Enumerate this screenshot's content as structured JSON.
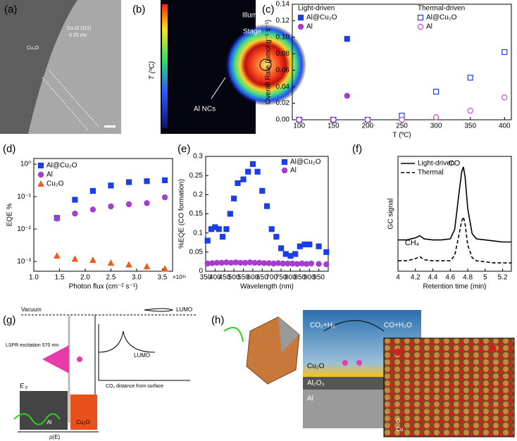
{
  "panel_labels": [
    "(a)",
    "(b)",
    "(c)",
    "(d)",
    "(e)",
    "(f)",
    "(g)",
    "(h)"
  ],
  "panel_a": {
    "texts": [
      "Cu₂O (111)",
      "0.25 nm",
      "Cu₂O"
    ]
  },
  "panel_b": {
    "texts": [
      "T (ºC)",
      "Illumination spot",
      "Stage",
      "Al NCs"
    ]
  },
  "panel_g": {
    "texts": [
      "Vacuum",
      "LUMO",
      "LUMO",
      "LSPR excitation 570 nm",
      "E",
      "F",
      "Al",
      "Cu₂O",
      "ρ(E)",
      "CO₂ distance from surface"
    ]
  },
  "panel_h": {
    "texts": [
      "CO₂+H₂",
      "CO+H₂O",
      "Cu₂O",
      "Al₂O₃",
      "Al",
      "O",
      "Cu"
    ]
  },
  "chart_data": [
    {
      "type": "scatter",
      "xlabel": "T (ºC)",
      "ylabel": "Overall Rate (μmol g⁻¹ s⁻¹)",
      "xlim": [
        90,
        410
      ],
      "ylim": [
        0,
        0.14
      ],
      "xticks": [
        100,
        150,
        200,
        250,
        300,
        350,
        400
      ],
      "yticks": [
        {
          "value": 0,
          "label": "0.00"
        },
        {
          "value": 0.02,
          "label": "0.02"
        },
        {
          "value": 0.04,
          "label": "0.04"
        },
        {
          "value": 0.06,
          "label": "0.06"
        },
        {
          "value": 0.08,
          "label": "0.08"
        },
        {
          "value": 0.1,
          "label": "0.10"
        },
        {
          "value": 0.12,
          "label": "0.12"
        },
        {
          "value": 0.14,
          "label": "0.14"
        }
      ],
      "legend_titles": [
        "Light-driven",
        "Thermal-driven"
      ],
      "series": [
        {
          "name": "Al@Cu₂O",
          "color": "#1a3ee8",
          "marker": "square",
          "filled": true,
          "x": [
            100,
            150,
            170
          ],
          "values": [
            0,
            0,
            0.098
          ]
        },
        {
          "name": "Al",
          "color": "#a63cd0",
          "marker": "circle",
          "filled": true,
          "x": [
            100,
            150,
            170
          ],
          "values": [
            0,
            0,
            0.029
          ]
        },
        {
          "name": "Al@Cu₂O",
          "color": "#1a3ee8",
          "marker": "square",
          "filled": false,
          "x": [
            100,
            150,
            200,
            250,
            300,
            350,
            400
          ],
          "values": [
            0,
            0,
            0,
            0.005,
            0.034,
            0.051,
            0.082
          ]
        },
        {
          "name": "Al",
          "color": "#c24fd6",
          "marker": "circle",
          "filled": false,
          "x": [
            100,
            150,
            200,
            250,
            300,
            350,
            400
          ],
          "values": [
            0,
            0,
            0,
            0,
            0.003,
            0.011,
            0.027
          ]
        }
      ]
    },
    {
      "type": "scatter",
      "xlabel": "Photon flux (cm⁻² s⁻¹)",
      "x_multiplier": "×10²⁵",
      "ylabel": "EQE %",
      "log_y": true,
      "xlim": [
        1.0,
        3.7
      ],
      "ylim": [
        0.0005,
        1.5
      ],
      "xticks": [
        {
          "value": 1,
          "label": "1.0"
        },
        1.5,
        {
          "value": 2,
          "label": "2.0"
        },
        2.5,
        {
          "value": 3,
          "label": "3.0"
        },
        3.5
      ],
      "yticks": [
        {
          "value": 0.001,
          "label": "10⁻³"
        },
        {
          "value": 0.01,
          "label": "10⁻²"
        },
        {
          "value": 0.1,
          "label": "10⁻¹"
        },
        {
          "value": 1,
          "label": "10⁰"
        }
      ],
      "series": [
        {
          "name": "Al@Cu₂O",
          "color": "#1a3ee8",
          "marker": "square",
          "filled": true,
          "x": [
            1.45,
            1.8,
            2.15,
            2.5,
            2.85,
            3.2,
            3.55
          ],
          "values": [
            0.022,
            0.08,
            0.15,
            0.22,
            0.28,
            0.3,
            0.32
          ]
        },
        {
          "name": "Al",
          "color": "#a63cd0",
          "marker": "circle",
          "filled": true,
          "x": [
            1.45,
            1.8,
            2.15,
            2.5,
            2.85,
            3.2,
            3.55
          ],
          "values": [
            0.021,
            0.03,
            0.04,
            0.05,
            0.058,
            0.063,
            0.095
          ]
        },
        {
          "name": "Cu₂O",
          "color": "#f05a1e",
          "marker": "triangle",
          "filled": true,
          "x": [
            1.45,
            1.8,
            2.15,
            2.5,
            2.85,
            3.2,
            3.55
          ],
          "values": [
            0.0015,
            0.0012,
            0.0011,
            0.0009,
            0.0008,
            0.0007,
            0.0006
          ]
        }
      ]
    },
    {
      "type": "scatter",
      "xlabel": "Wavelength (nm)",
      "ylabel": "%EQE (CO formation)",
      "xlim": [
        350,
        1000
      ],
      "ylim": [
        0,
        0.3
      ],
      "xticks": [
        350,
        400,
        450,
        500,
        550,
        600,
        650,
        700,
        750,
        800,
        850,
        900,
        950
      ],
      "yticks": [
        0,
        0.05,
        0.1,
        0.15,
        0.2,
        0.25,
        0.3
      ],
      "series": [
        {
          "name": "Al@Cu₂O",
          "color": "#1a3ee8",
          "marker": "square",
          "filled": true,
          "x": [
            360,
            380,
            400,
            420,
            440,
            460,
            480,
            500,
            520,
            550,
            575,
            600,
            625,
            650,
            675,
            700,
            725,
            750,
            775,
            800,
            825,
            850,
            875,
            900,
            950,
            990
          ],
          "values": [
            0.08,
            0.11,
            0.115,
            0.11,
            0.09,
            0.11,
            0.15,
            0.19,
            0.23,
            0.24,
            0.26,
            0.28,
            0.26,
            0.21,
            0.17,
            0.11,
            0.09,
            0.06,
            0.045,
            0.04,
            0.045,
            0.065,
            0.07,
            0.07,
            0.065,
            0.05
          ]
        },
        {
          "name": "Al",
          "color": "#a63cd0",
          "marker": "circle",
          "filled": true,
          "x": [
            360,
            385,
            410,
            435,
            460,
            485,
            510,
            535,
            560,
            585,
            610,
            635,
            660,
            685,
            710,
            735,
            760,
            785,
            810,
            835,
            860,
            885,
            910,
            950,
            990
          ],
          "values": [
            0.02,
            0.021,
            0.022,
            0.022,
            0.023,
            0.022,
            0.023,
            0.022,
            0.022,
            0.023,
            0.022,
            0.022,
            0.021,
            0.021,
            0.02,
            0.021,
            0.02,
            0.02,
            0.02,
            0.019,
            0.02,
            0.019,
            0.02,
            0.019,
            0.018
          ]
        }
      ]
    },
    {
      "type": "line",
      "xlabel": "Retention time (min)",
      "ylabel": "GC signal",
      "xlim": [
        4,
        5.3
      ],
      "ylim": [
        0,
        1.1
      ],
      "xticks": [
        4,
        4.2,
        4.4,
        4.6,
        4.8,
        5,
        5.2
      ],
      "annotations": [
        "CO",
        "CH₄"
      ],
      "series": [
        {
          "name": "Light-driven",
          "color": "#000000",
          "dash": false,
          "x": [
            4.0,
            4.1,
            4.2,
            4.25,
            4.3,
            4.4,
            4.5,
            4.6,
            4.65,
            4.7,
            4.73,
            4.75,
            4.77,
            4.8,
            4.85,
            4.9,
            5.0,
            5.1,
            5.2,
            5.3
          ],
          "values": [
            0.3,
            0.3,
            0.32,
            0.34,
            0.31,
            0.3,
            0.3,
            0.31,
            0.4,
            0.75,
            0.95,
            1.0,
            0.9,
            0.6,
            0.36,
            0.31,
            0.3,
            0.29,
            0.28,
            0.28
          ]
        },
        {
          "name": "Thermal",
          "color": "#000000",
          "dash": true,
          "x": [
            4.0,
            4.1,
            4.2,
            4.25,
            4.3,
            4.4,
            4.5,
            4.6,
            4.65,
            4.7,
            4.73,
            4.75,
            4.77,
            4.8,
            4.85,
            4.9,
            5.0,
            5.1,
            5.2,
            5.3
          ],
          "values": [
            0.1,
            0.1,
            0.12,
            0.14,
            0.11,
            0.1,
            0.1,
            0.1,
            0.15,
            0.35,
            0.48,
            0.52,
            0.45,
            0.25,
            0.13,
            0.1,
            0.09,
            0.08,
            0.08,
            0.08
          ]
        }
      ]
    }
  ]
}
